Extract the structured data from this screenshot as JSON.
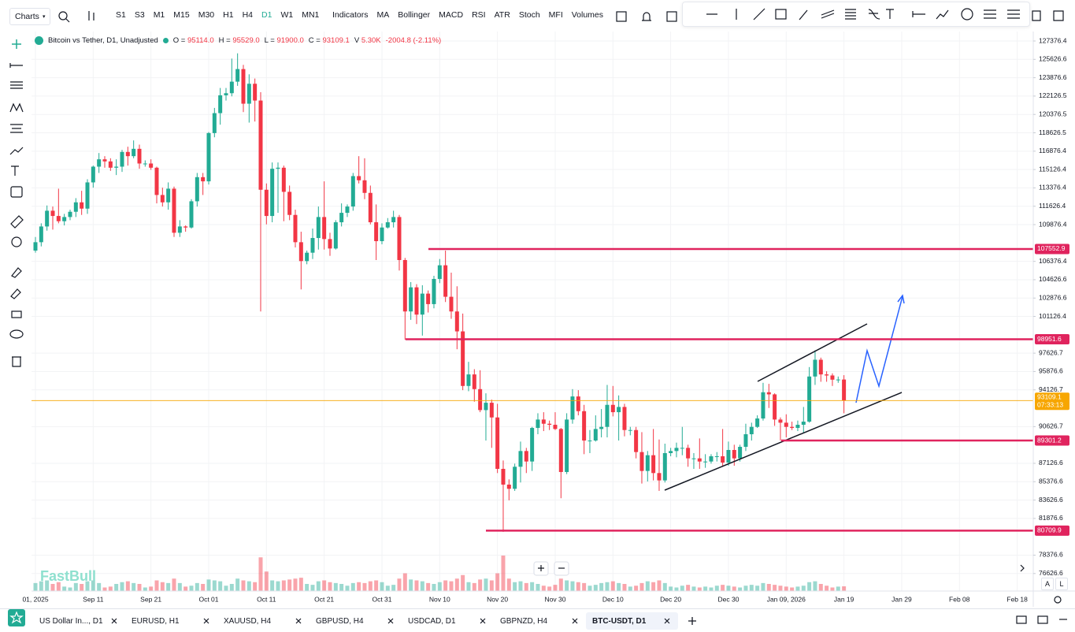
{
  "toolbar": {
    "charts": "Charts",
    "timeframes": [
      "S1",
      "S3",
      "M1",
      "M15",
      "M30",
      "H1",
      "H4",
      "D1",
      "W1",
      "MN1"
    ],
    "indicators": "Indicators",
    "indicator_buttons": [
      "MA",
      "Bollinger",
      "MACD",
      "RSI",
      "ATR",
      "Stoch",
      "MFI",
      "Volumes"
    ]
  },
  "chart_data": {
    "type": "candlestick",
    "title": "Bitcoin vs Tether, D1, Unadjusted",
    "ohlc_keys": [
      "O =",
      "H =",
      "L =",
      "C =",
      "V"
    ],
    "last_labels": [
      "95114.0",
      "95529.0",
      "91900.0",
      "93109.1"
    ],
    "volume_label": "5.30K",
    "change_label": "-2004.8 (-2.11%)",
    "up_color": "#22ab94",
    "down_color": "#f23645",
    "level_color": "#e0245e",
    "price_line_color": "#f7a600",
    "grid": true,
    "candles": [
      [
        107400,
        108700,
        107200,
        108200
      ],
      [
        108200,
        110000,
        107800,
        109700
      ],
      [
        109700,
        111700,
        109300,
        111200
      ],
      [
        111200,
        111600,
        109400,
        110700
      ],
      [
        110700,
        113300,
        110000,
        110200
      ],
      [
        110200,
        110900,
        109800,
        110600
      ],
      [
        110600,
        111300,
        110300,
        111100
      ],
      [
        111100,
        112400,
        110600,
        112000
      ],
      [
        112000,
        113100,
        110800,
        111400
      ],
      [
        111400,
        114200,
        110900,
        113900
      ],
      [
        113900,
        115500,
        113400,
        115400
      ],
      [
        115400,
        116700,
        114800,
        116100
      ],
      [
        116100,
        116400,
        115300,
        115900
      ],
      [
        115900,
        116200,
        115000,
        115300
      ],
      [
        115300,
        116100,
        114600,
        115400
      ],
      [
        115400,
        117000,
        114900,
        116800
      ],
      [
        116800,
        117300,
        115500,
        116400
      ],
      [
        116400,
        117900,
        116200,
        117100
      ],
      [
        117100,
        117500,
        115200,
        115700
      ],
      [
        115700,
        116000,
        115400,
        115700
      ],
      [
        115700,
        116100,
        115100,
        115300
      ],
      [
        115300,
        115400,
        111900,
        112700
      ],
      [
        112700,
        113400,
        111600,
        112000
      ],
      [
        112000,
        113900,
        111300,
        113300
      ],
      [
        113300,
        113500,
        108700,
        109100
      ],
      [
        109100,
        110300,
        108700,
        109700
      ],
      [
        109700,
        109800,
        109200,
        109600
      ],
      [
        109600,
        112300,
        109500,
        112100
      ],
      [
        112100,
        114800,
        111600,
        114400
      ],
      [
        114400,
        114800,
        112700,
        114000
      ],
      [
        114000,
        118700,
        113700,
        118600
      ],
      [
        118600,
        121000,
        118200,
        120500
      ],
      [
        120500,
        122900,
        119400,
        122200
      ],
      [
        122200,
        122900,
        121700,
        122400
      ],
      [
        122400,
        125700,
        122100,
        123500
      ],
      [
        123500,
        126200,
        123100,
        124700
      ],
      [
        124700,
        125100,
        120600,
        121400
      ],
      [
        121400,
        124200,
        119600,
        123300
      ],
      [
        123300,
        123800,
        119700,
        121700
      ],
      [
        121700,
        122500,
        101600,
        113200
      ],
      [
        113200,
        113800,
        109900,
        110700
      ],
      [
        110700,
        115800,
        110100,
        115200
      ],
      [
        115200,
        115800,
        111000,
        115300
      ],
      [
        115300,
        115500,
        110200,
        113000
      ],
      [
        113000,
        113600,
        110300,
        110800
      ],
      [
        110800,
        111300,
        107700,
        108200
      ],
      [
        108200,
        109200,
        103700,
        106400
      ],
      [
        106400,
        107400,
        106100,
        107200
      ],
      [
        107200,
        109500,
        106600,
        108600
      ],
      [
        108600,
        111600,
        107500,
        110600
      ],
      [
        110600,
        114000,
        107500,
        108500
      ],
      [
        108500,
        109100,
        106900,
        107600
      ],
      [
        107600,
        110300,
        107500,
        110100
      ],
      [
        110100,
        111900,
        109700,
        111000
      ],
      [
        111000,
        111800,
        110600,
        111600
      ],
      [
        111600,
        114800,
        111200,
        114500
      ],
      [
        114500,
        116400,
        113800,
        114100
      ],
      [
        114100,
        116200,
        112300,
        112900
      ],
      [
        112900,
        113600,
        109900,
        110100
      ],
      [
        110100,
        111800,
        106500,
        108300
      ],
      [
        108300,
        110000,
        108000,
        109600
      ],
      [
        109600,
        110500,
        109500,
        110100
      ],
      [
        110100,
        111200,
        109600,
        110600
      ],
      [
        110600,
        110800,
        105500,
        106500
      ],
      [
        106500,
        106700,
        98900,
        101600
      ],
      [
        101600,
        104400,
        100800,
        103900
      ],
      [
        103900,
        104200,
        100400,
        101300
      ],
      [
        101300,
        104100,
        99300,
        103300
      ],
      [
        103300,
        103600,
        101500,
        102300
      ],
      [
        102300,
        105000,
        101900,
        104700
      ],
      [
        104700,
        106600,
        104300,
        106000
      ],
      [
        106000,
        107400,
        102500,
        103000
      ],
      [
        103000,
        105300,
        100900,
        101600
      ],
      [
        101600,
        104000,
        98000,
        99700
      ],
      [
        99700,
        101400,
        94100,
        94500
      ],
      [
        94500,
        96800,
        94000,
        95600
      ],
      [
        95600,
        96100,
        93000,
        94200
      ],
      [
        94200,
        96000,
        92000,
        92200
      ],
      [
        92200,
        93800,
        89300,
        92900
      ],
      [
        92900,
        93200,
        88600,
        91500
      ],
      [
        91500,
        92800,
        86200,
        86600
      ],
      [
        86600,
        87400,
        80600,
        85100
      ],
      [
        85100,
        85600,
        83600,
        84700
      ],
      [
        84700,
        87100,
        84500,
        86800
      ],
      [
        86800,
        89200,
        85300,
        88300
      ],
      [
        88300,
        88600,
        86200,
        87300
      ],
      [
        87300,
        90600,
        86400,
        90500
      ],
      [
        90500,
        91900,
        89900,
        91300
      ],
      [
        91300,
        92000,
        90200,
        90900
      ],
      [
        90900,
        91200,
        90300,
        90800
      ],
      [
        90800,
        92000,
        90300,
        90400
      ],
      [
        90400,
        90500,
        83800,
        86300
      ],
      [
        86300,
        91900,
        86100,
        91300
      ],
      [
        91300,
        94200,
        90900,
        93500
      ],
      [
        93500,
        94100,
        91700,
        92100
      ],
      [
        92100,
        92700,
        88000,
        89300
      ],
      [
        89300,
        90300,
        88100,
        89300
      ],
      [
        89300,
        91700,
        89200,
        90400
      ],
      [
        90400,
        92300,
        89600,
        90600
      ],
      [
        90600,
        94600,
        89600,
        92700
      ],
      [
        92700,
        94500,
        91600,
        92000
      ],
      [
        92000,
        93600,
        89300,
        92500
      ],
      [
        92500,
        92800,
        89700,
        90300
      ],
      [
        90300,
        90600,
        89800,
        90300
      ],
      [
        90300,
        90600,
        87600,
        88200
      ],
      [
        88200,
        90100,
        85200,
        86400
      ],
      [
        86400,
        88300,
        85400,
        87900
      ],
      [
        87900,
        90400,
        85500,
        86200
      ],
      [
        86200,
        89400,
        84500,
        85500
      ],
      [
        85500,
        89000,
        85300,
        88100
      ],
      [
        88100,
        88600,
        87800,
        88300
      ],
      [
        88300,
        89100,
        87700,
        88600
      ],
      [
        88600,
        90600,
        87900,
        88600
      ],
      [
        88600,
        88900,
        86800,
        87600
      ],
      [
        87600,
        88100,
        86600,
        87600
      ],
      [
        87600,
        89500,
        86600,
        87300
      ],
      [
        87300,
        88000,
        86700,
        87300
      ],
      [
        87300,
        88000,
        87100,
        87800
      ],
      [
        87800,
        88200,
        87300,
        87800
      ],
      [
        87800,
        90400,
        86800,
        87200
      ],
      [
        87200,
        89200,
        86900,
        88400
      ],
      [
        88400,
        88900,
        86900,
        87600
      ],
      [
        87600,
        88900,
        87300,
        88700
      ],
      [
        88700,
        90900,
        88300,
        89900
      ],
      [
        89900,
        91000,
        89300,
        90600
      ],
      [
        90600,
        91700,
        90500,
        91400
      ],
      [
        91400,
        94800,
        91200,
        93900
      ],
      [
        93900,
        94700,
        92400,
        93700
      ],
      [
        93700,
        93800,
        90700,
        91300
      ],
      [
        91300,
        91500,
        89300,
        91000
      ],
      [
        91000,
        91800,
        89600,
        90600
      ],
      [
        90600,
        91100,
        90300,
        90500
      ],
      [
        90500,
        91200,
        90200,
        90800
      ],
      [
        90800,
        92500,
        90000,
        91100
      ],
      [
        91100,
        96300,
        91000,
        95400
      ],
      [
        95400,
        97900,
        94600,
        97000
      ],
      [
        97000,
        97200,
        94900,
        95600
      ],
      [
        95600,
        95900,
        94900,
        95500
      ],
      [
        95500,
        95700,
        94500,
        95100
      ],
      [
        95100,
        95400,
        94800,
        95114
      ],
      [
        95114.0,
        95529.0,
        91900.0,
        93109.1
      ]
    ],
    "volumes": [
      9000,
      11000,
      12000,
      8000,
      10000,
      5000,
      4000,
      9000,
      8000,
      11000,
      12000,
      9000,
      4000,
      5000,
      8000,
      10000,
      11000,
      9000,
      8000,
      4000,
      5000,
      12000,
      10000,
      9000,
      14000,
      9000,
      5000,
      6000,
      9000,
      8000,
      13000,
      12000,
      11000,
      6000,
      8000,
      14000,
      12000,
      11000,
      10000,
      38000,
      22000,
      12000,
      11000,
      12000,
      13000,
      14000,
      15000,
      8000,
      7000,
      11000,
      12000,
      10000,
      9000,
      8000,
      6000,
      9000,
      10000,
      9000,
      11000,
      12000,
      10000,
      6000,
      7000,
      14000,
      20000,
      13000,
      12000,
      11000,
      9000,
      8000,
      10000,
      12000,
      11000,
      14000,
      18000,
      10000,
      9000,
      13000,
      14000,
      12000,
      20000,
      40000,
      14000,
      10000,
      11000,
      9000,
      10000,
      8000,
      6000,
      5000,
      7000,
      14000,
      12000,
      11000,
      10000,
      9000,
      6000,
      7000,
      9000,
      10000,
      11000,
      9000,
      8000,
      5000,
      6000,
      9000,
      11000,
      10000,
      12000,
      9000,
      5000,
      4000,
      6000,
      7000,
      5000,
      4000,
      5000,
      4000,
      6000,
      7000,
      6000,
      5000,
      4000,
      6000,
      7000,
      6000,
      9000,
      8000,
      7000,
      6000,
      5000,
      4000,
      5000,
      6000,
      10000,
      11000,
      8000,
      6000,
      4000,
      5000,
      5300
    ],
    "ylim": [
      74958,
      128278
    ],
    "yticks": [
      127376.4,
      125626.6,
      123876.6,
      122126.5,
      120376.5,
      118626.5,
      116876.4,
      115126.4,
      113376.4,
      111626.4,
      109876.4,
      106376.4,
      104626.6,
      102876.6,
      101126.4,
      97626.7,
      95876.6,
      94126.7,
      90626.7,
      87126.6,
      85376.6,
      83626.6,
      81876.6,
      78376.6,
      76626.6
    ],
    "xticks": [
      "01, 2025",
      "Sep 11",
      "Sep 21",
      "Oct 01",
      "Oct 11",
      "Oct 21",
      "Oct 31",
      "Nov 10",
      "Nov 20",
      "Nov 30",
      "Dec 10",
      "Dec 20",
      "Dec 30",
      "Jan 09, 2026",
      "Jan 19",
      "Jan 29",
      "Feb 08",
      "Feb 18"
    ],
    "levels": [
      107552.9,
      98951.6,
      89301.2,
      80709.9
    ],
    "countdown": "07:33:13",
    "watermark": "FastBull",
    "axis_buttons": [
      "A",
      "L"
    ]
  },
  "tabs": [
    "US Dollar In..., D1",
    "EURUSD, H1",
    "XAUUSD, H4",
    "GBPUSD, H4",
    "USDCAD, D1",
    "GBPNZD, H4",
    "BTC-USDT, D1"
  ]
}
